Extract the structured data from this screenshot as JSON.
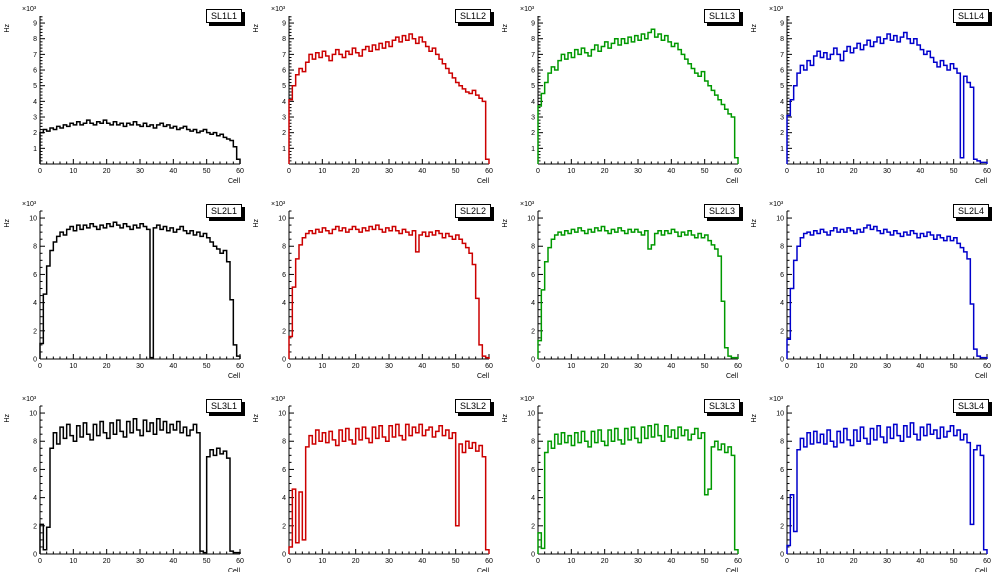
{
  "page": {
    "background": "#ffffff"
  },
  "axes": {
    "xlabel": "Cell",
    "ylabel": "Hz",
    "scale_label": "×10³",
    "xlim": [
      0,
      60
    ],
    "xticks": [
      0,
      10,
      20,
      30,
      40,
      50,
      60
    ],
    "x_minor_step": 2
  },
  "chart_data": [
    {
      "type": "line",
      "title": "SL1L1",
      "color": "#000000",
      "ylim": [
        0,
        9.45
      ],
      "yticks": [
        1,
        2,
        3,
        4,
        5,
        6,
        7,
        8,
        9
      ],
      "ymajor": 1,
      "yminor": 0.2,
      "x_start": 0,
      "bin_width": 1,
      "values": [
        2.0,
        2.2,
        2.1,
        2.3,
        2.2,
        2.4,
        2.3,
        2.5,
        2.4,
        2.6,
        2.5,
        2.7,
        2.5,
        2.6,
        2.8,
        2.6,
        2.5,
        2.7,
        2.6,
        2.8,
        2.6,
        2.5,
        2.7,
        2.5,
        2.6,
        2.4,
        2.6,
        2.5,
        2.7,
        2.5,
        2.4,
        2.6,
        2.4,
        2.5,
        2.3,
        2.5,
        2.6,
        2.4,
        2.5,
        2.3,
        2.4,
        2.2,
        2.3,
        2.4,
        2.2,
        2.1,
        2.2,
        2.0,
        2.1,
        2.2,
        2.0,
        1.9,
        2.0,
        1.8,
        1.9,
        1.7,
        1.6,
        1.5,
        1.1,
        0.3
      ]
    },
    {
      "type": "line",
      "title": "SL1L2",
      "color": "#cc0000",
      "ylim": [
        0,
        9.45
      ],
      "yticks": [
        1,
        2,
        3,
        4,
        5,
        6,
        7,
        8,
        9
      ],
      "ymajor": 1,
      "yminor": 0.2,
      "x_start": 0,
      "bin_width": 1,
      "values": [
        4.1,
        5.0,
        5.7,
        6.1,
        5.9,
        6.5,
        7.0,
        6.7,
        7.1,
        6.8,
        7.2,
        6.9,
        6.6,
        7.0,
        7.3,
        7.0,
        6.8,
        7.2,
        7.0,
        7.4,
        7.1,
        6.9,
        7.3,
        7.5,
        7.2,
        7.6,
        7.3,
        7.7,
        7.4,
        7.8,
        7.5,
        7.9,
        8.1,
        7.8,
        8.2,
        7.9,
        8.3,
        8.0,
        7.7,
        8.1,
        7.8,
        7.5,
        7.2,
        7.4,
        7.0,
        6.7,
        6.4,
        6.1,
        5.8,
        5.5,
        5.2,
        5.0,
        4.8,
        4.6,
        4.5,
        4.7,
        4.4,
        4.2,
        4.0,
        0.3
      ]
    },
    {
      "type": "line",
      "title": "SL1L3",
      "color": "#009900",
      "ylim": [
        0,
        9.45
      ],
      "yticks": [
        1,
        2,
        3,
        4,
        5,
        6,
        7,
        8,
        9
      ],
      "ymajor": 1,
      "yminor": 0.2,
      "x_start": 0,
      "bin_width": 1,
      "values": [
        3.7,
        4.5,
        5.2,
        5.8,
        6.2,
        6.0,
        6.6,
        7.0,
        6.7,
        7.1,
        6.8,
        7.3,
        7.0,
        7.4,
        7.1,
        6.9,
        7.3,
        7.6,
        7.2,
        7.5,
        7.8,
        7.4,
        7.7,
        8.0,
        7.6,
        8.0,
        7.7,
        8.1,
        7.8,
        8.2,
        7.9,
        8.3,
        8.0,
        8.4,
        8.6,
        8.1,
        8.3,
        7.9,
        8.2,
        7.8,
        7.5,
        7.7,
        7.3,
        7.0,
        6.7,
        6.4,
        6.1,
        5.8,
        5.6,
        5.9,
        5.3,
        5.0,
        4.7,
        4.4,
        4.1,
        3.8,
        3.5,
        3.2,
        3.0,
        0.4
      ]
    },
    {
      "type": "line",
      "title": "SL1L4",
      "color": "#0000cc",
      "ylim": [
        0,
        9.45
      ],
      "yticks": [
        1,
        2,
        3,
        4,
        5,
        6,
        7,
        8,
        9
      ],
      "ymajor": 1,
      "yminor": 0.2,
      "x_start": 0,
      "bin_width": 1,
      "values": [
        3.1,
        4.1,
        5.0,
        5.8,
        6.3,
        6.0,
        6.6,
        6.3,
        6.9,
        7.2,
        6.8,
        7.1,
        6.7,
        7.0,
        7.4,
        7.0,
        6.6,
        7.2,
        7.5,
        7.1,
        7.4,
        7.7,
        7.3,
        7.6,
        7.9,
        7.5,
        7.8,
        8.1,
        7.7,
        8.0,
        8.3,
        7.9,
        8.2,
        7.8,
        8.1,
        8.4,
        8.0,
        7.7,
        8.0,
        7.6,
        7.3,
        7.0,
        7.2,
        6.8,
        6.5,
        6.2,
        6.6,
        6.3,
        6.0,
        6.4,
        6.1,
        5.8,
        0.4,
        5.6,
        5.2,
        4.9,
        0.3,
        0.2,
        0.1,
        0.1
      ]
    },
    {
      "type": "line",
      "title": "SL2L1",
      "color": "#000000",
      "ylim": [
        0,
        10.5
      ],
      "yticks": [
        0,
        2,
        4,
        6,
        8,
        10
      ],
      "ymajor": 2,
      "yminor": 0.5,
      "x_start": 0,
      "bin_width": 1,
      "values": [
        1.1,
        4.6,
        6.6,
        7.7,
        8.3,
        8.7,
        9.0,
        8.8,
        9.2,
        9.4,
        9.1,
        9.5,
        9.2,
        9.5,
        9.3,
        9.6,
        9.4,
        9.2,
        9.5,
        9.3,
        9.6,
        9.4,
        9.7,
        9.5,
        9.3,
        9.6,
        9.4,
        9.2,
        9.5,
        9.3,
        9.6,
        9.4,
        9.2,
        0.1,
        9.3,
        9.5,
        9.2,
        9.4,
        9.1,
        9.3,
        9.0,
        9.2,
        9.4,
        9.1,
        8.9,
        9.1,
        8.8,
        9.0,
        8.7,
        8.9,
        8.6,
        8.3,
        8.0,
        7.8,
        7.5,
        7.7,
        6.9,
        4.2,
        1.0,
        0.2
      ]
    },
    {
      "type": "line",
      "title": "SL2L2",
      "color": "#cc0000",
      "ylim": [
        0,
        10.5
      ],
      "yticks": [
        0,
        2,
        4,
        6,
        8,
        10
      ],
      "ymajor": 2,
      "yminor": 0.5,
      "x_start": 0,
      "bin_width": 1,
      "values": [
        1.6,
        5.1,
        7.1,
        8.1,
        8.6,
        8.9,
        9.1,
        8.9,
        9.2,
        9.0,
        9.3,
        9.1,
        8.9,
        9.2,
        9.4,
        9.1,
        9.3,
        9.0,
        9.2,
        9.4,
        9.2,
        9.0,
        9.3,
        9.1,
        9.4,
        9.2,
        9.5,
        9.2,
        9.0,
        9.3,
        9.1,
        9.4,
        9.1,
        8.9,
        9.2,
        9.0,
        8.8,
        9.1,
        7.6,
        8.8,
        9.0,
        8.7,
        9.0,
        8.8,
        9.1,
        8.9,
        8.6,
        8.9,
        8.7,
        8.5,
        8.8,
        8.5,
        8.2,
        7.9,
        7.5,
        6.7,
        4.3,
        1.0,
        0.2,
        0.1
      ]
    },
    {
      "type": "line",
      "title": "SL2L3",
      "color": "#009900",
      "ylim": [
        0,
        10.5
      ],
      "yticks": [
        0,
        2,
        4,
        6,
        8,
        10
      ],
      "ymajor": 2,
      "yminor": 0.5,
      "x_start": 0,
      "bin_width": 1,
      "values": [
        1.3,
        4.9,
        6.9,
        7.9,
        8.5,
        8.8,
        9.0,
        8.8,
        9.1,
        8.9,
        9.2,
        9.0,
        9.3,
        9.1,
        8.9,
        9.2,
        9.0,
        9.3,
        9.1,
        9.4,
        9.1,
        8.9,
        9.2,
        9.0,
        9.3,
        9.1,
        8.9,
        9.2,
        9.0,
        9.2,
        9.0,
        8.8,
        9.1,
        7.8,
        8.1,
        8.9,
        9.1,
        8.8,
        9.1,
        8.9,
        9.2,
        9.0,
        8.7,
        9.0,
        8.8,
        9.1,
        8.8,
        8.6,
        8.9,
        8.6,
        8.8,
        8.4,
        8.1,
        7.8,
        7.3,
        4.1,
        0.8,
        0.2,
        0.1,
        0.1
      ]
    },
    {
      "type": "line",
      "title": "SL2L4",
      "color": "#0000cc",
      "ylim": [
        0,
        10.5
      ],
      "yticks": [
        0,
        2,
        4,
        6,
        8,
        10
      ],
      "ymajor": 2,
      "yminor": 0.5,
      "x_start": 0,
      "bin_width": 1,
      "values": [
        1.4,
        5.0,
        7.0,
        8.0,
        8.6,
        8.9,
        9.0,
        8.8,
        9.1,
        8.9,
        9.2,
        9.0,
        8.8,
        9.1,
        9.3,
        9.0,
        9.2,
        9.0,
        9.3,
        9.1,
        8.9,
        9.2,
        9.0,
        9.3,
        9.5,
        9.2,
        9.4,
        9.1,
        8.9,
        9.2,
        9.0,
        8.8,
        9.1,
        8.9,
        8.7,
        9.0,
        8.8,
        9.1,
        8.9,
        8.6,
        8.9,
        8.7,
        9.0,
        8.8,
        8.5,
        8.8,
        8.6,
        8.4,
        8.7,
        8.4,
        8.6,
        8.2,
        7.9,
        7.6,
        7.1,
        3.9,
        0.7,
        0.2,
        0.1,
        0.1
      ]
    },
    {
      "type": "line",
      "title": "SL3L1",
      "color": "#000000",
      "ylim": [
        0,
        10.5
      ],
      "yticks": [
        0,
        2,
        4,
        6,
        8,
        10
      ],
      "ymajor": 2,
      "yminor": 0.5,
      "x_start": 0,
      "bin_width": 1,
      "values": [
        2.1,
        0.3,
        1.9,
        7.5,
        8.6,
        7.8,
        9.0,
        8.2,
        9.2,
        8.4,
        8.0,
        9.1,
        8.3,
        9.3,
        8.5,
        8.1,
        9.2,
        8.4,
        9.4,
        8.6,
        8.2,
        9.3,
        8.5,
        9.5,
        8.7,
        8.3,
        9.4,
        8.6,
        9.6,
        8.8,
        8.4,
        9.5,
        8.7,
        9.3,
        8.5,
        9.6,
        8.8,
        9.4,
        8.6,
        9.2,
        8.8,
        9.4,
        8.6,
        9.0,
        8.4,
        8.8,
        9.2,
        8.6,
        0.2,
        0.1,
        6.9,
        7.4,
        7.0,
        7.5,
        7.1,
        7.3,
        6.8,
        0.2,
        0.1,
        0.1
      ]
    },
    {
      "type": "line",
      "title": "SL3L2",
      "color": "#cc0000",
      "ylim": [
        0,
        10.5
      ],
      "yticks": [
        0,
        2,
        4,
        6,
        8,
        10
      ],
      "ymajor": 2,
      "yminor": 0.5,
      "x_start": 0,
      "bin_width": 1,
      "values": [
        0.5,
        4.6,
        0.8,
        4.4,
        1.0,
        7.6,
        8.4,
        7.8,
        8.8,
        8.0,
        8.6,
        7.9,
        8.7,
        8.1,
        7.7,
        8.8,
        8.0,
        8.9,
        8.1,
        7.8,
        8.9,
        8.1,
        9.0,
        8.2,
        7.9,
        9.0,
        8.2,
        9.1,
        8.3,
        8.0,
        9.1,
        8.3,
        9.2,
        8.4,
        8.1,
        9.2,
        8.4,
        9.0,
        8.6,
        9.2,
        8.4,
        8.8,
        9.0,
        8.3,
        8.7,
        9.1,
        8.4,
        8.8,
        8.2,
        8.6,
        2.0,
        7.8,
        7.2,
        8.0,
        7.5,
        7.9,
        7.3,
        7.7,
        6.9,
        0.3
      ]
    },
    {
      "type": "line",
      "title": "SL3L3",
      "color": "#009900",
      "ylim": [
        0,
        10.5
      ],
      "yticks": [
        0,
        2,
        4,
        6,
        8,
        10
      ],
      "ymajor": 2,
      "yminor": 0.5,
      "x_start": 0,
      "bin_width": 1,
      "values": [
        1.5,
        0.4,
        7.2,
        8.0,
        7.5,
        8.5,
        7.8,
        8.6,
        7.9,
        8.4,
        7.7,
        8.6,
        7.9,
        8.7,
        8.0,
        7.6,
        8.7,
        7.9,
        8.8,
        8.0,
        7.7,
        8.8,
        8.0,
        8.9,
        8.1,
        7.8,
        8.9,
        8.1,
        9.0,
        8.2,
        7.9,
        9.0,
        8.2,
        9.1,
        8.3,
        9.2,
        8.4,
        8.0,
        9.1,
        8.3,
        8.8,
        8.2,
        9.0,
        8.4,
        8.8,
        8.1,
        8.5,
        8.9,
        8.2,
        8.6,
        4.2,
        4.6,
        7.6,
        8.0,
        7.4,
        7.8,
        7.2,
        7.6,
        7.0,
        0.3
      ]
    },
    {
      "type": "line",
      "title": "SL3L4",
      "color": "#0000cc",
      "ylim": [
        0,
        10.5
      ],
      "yticks": [
        0,
        2,
        4,
        6,
        8,
        10
      ],
      "ymajor": 2,
      "yminor": 0.5,
      "x_start": 0,
      "bin_width": 1,
      "values": [
        0.6,
        4.2,
        1.6,
        7.4,
        8.2,
        7.6,
        8.6,
        7.8,
        8.7,
        7.9,
        8.5,
        7.8,
        8.8,
        8.0,
        7.6,
        8.7,
        7.9,
        8.9,
        8.1,
        7.7,
        8.8,
        8.0,
        9.0,
        8.2,
        7.8,
        8.9,
        8.1,
        9.1,
        8.3,
        7.9,
        9.0,
        8.2,
        9.2,
        8.4,
        8.0,
        9.1,
        8.3,
        9.3,
        8.5,
        8.1,
        9.0,
        8.4,
        9.2,
        8.5,
        8.8,
        8.2,
        9.0,
        8.3,
        8.7,
        9.1,
        8.4,
        8.8,
        8.1,
        8.5,
        7.9,
        2.1,
        7.4,
        7.7,
        7.0,
        0.3
      ]
    }
  ]
}
